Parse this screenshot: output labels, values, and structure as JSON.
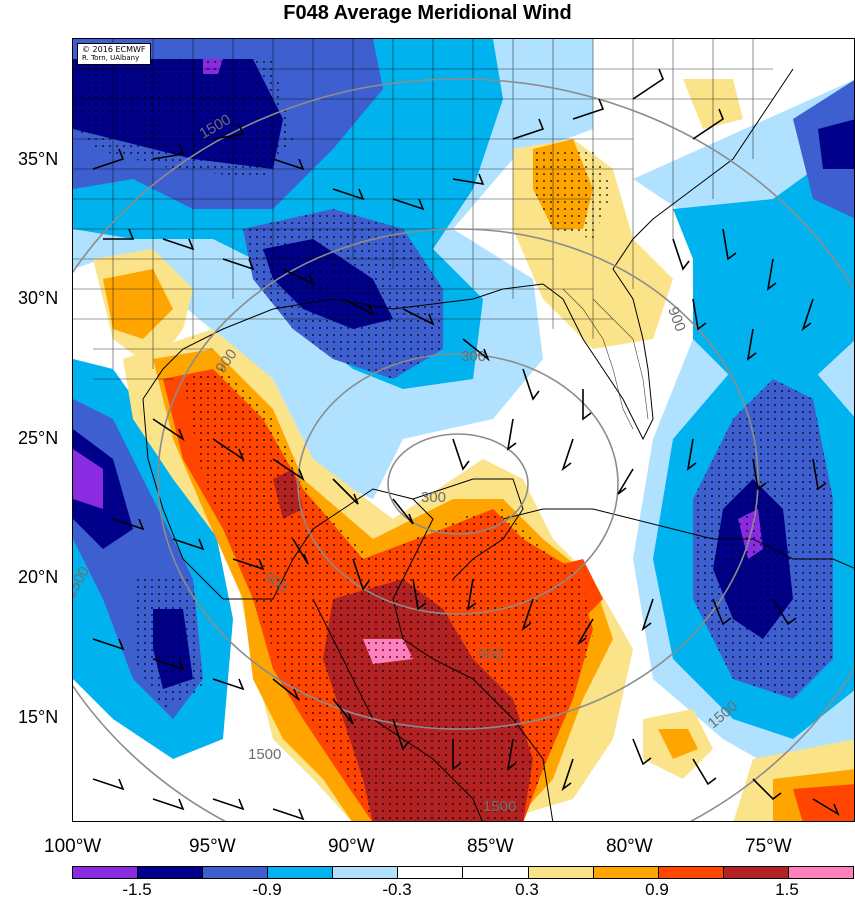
{
  "title": "F048 Average Meridional Wind",
  "credit": {
    "line1": "© 2016 ECMWF",
    "line2": "R. Torn, UAlbany"
  },
  "lat_labels": [
    "35°N",
    "30°N",
    "25°N",
    "20°N",
    "15°N"
  ],
  "lon_labels": [
    "100°W",
    "95°W",
    "90°W",
    "85°W",
    "80°W",
    "75°W"
  ],
  "colorbar": {
    "colors": [
      "#8a2be2",
      "#00008b",
      "#3e5fcf",
      "#00b2ee",
      "#b0e2ff",
      "#ffffff",
      "#ffffff",
      "#fbe38a",
      "#ffa500",
      "#ff4500",
      "#b22222",
      "#ff7fbf"
    ],
    "labels": [
      "-1.5",
      "-0.9",
      "-0.3",
      "0.3",
      "0.9",
      "1.5"
    ]
  },
  "contour_labels": [
    "300",
    "300",
    "900",
    "900",
    "900",
    "1500",
    "1500",
    "1500",
    "1500",
    "1500",
    "900"
  ],
  "fill_colors": {
    "strong_negative": "#00008b",
    "negative": "#3e5fcf",
    "weak_negative": "#00b2ee",
    "very_weak_negative": "#b0e2ff",
    "weak_positive": "#fbe38a",
    "positive": "#ffa500",
    "strong_positive": "#ff4500",
    "very_strong_positive": "#b22222",
    "extreme_positive": "#ff7fbf",
    "extreme_negative": "#8a2be2"
  }
}
